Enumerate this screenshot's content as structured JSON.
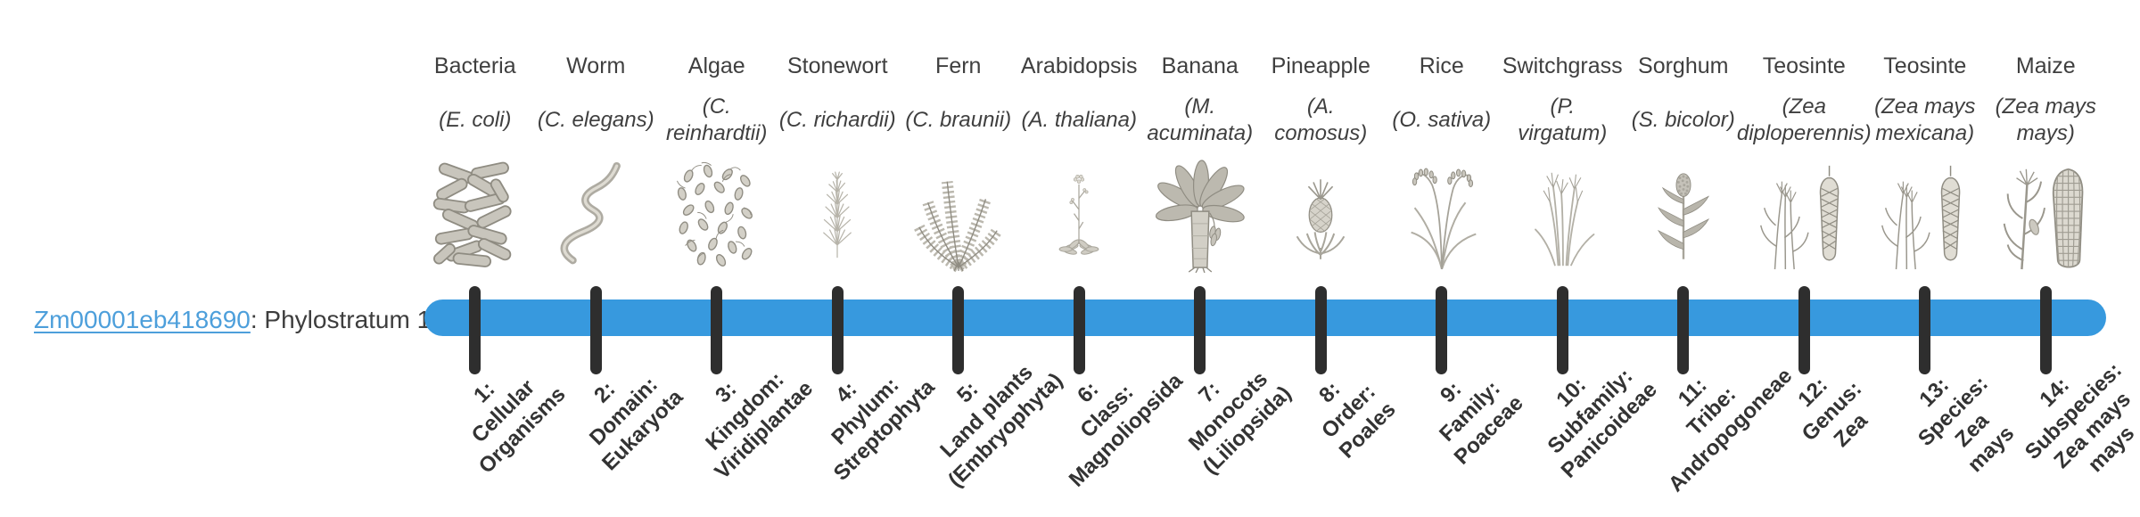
{
  "gene": {
    "id": "Zm00001eb418690",
    "suffix": ": Phylostratum 1"
  },
  "colors": {
    "bar": "#3799de",
    "tick": "#2e2e2e",
    "link": "#4d9fdb"
  },
  "strata": [
    {
      "common": "Bacteria",
      "species": "(E. coli)",
      "rank": "1:\nCellular\nOrganisms",
      "icon": "bacteria"
    },
    {
      "common": "Worm",
      "species": "(C. elegans)",
      "rank": "2:\nDomain:\nEukaryota",
      "icon": "worm"
    },
    {
      "common": "Algae",
      "species": "(C.\nreinhardtii)",
      "rank": "3:\nKingdom:\nViridiplantae",
      "icon": "algae"
    },
    {
      "common": "Stonewort",
      "species": "(C. richardii)",
      "rank": "4:\nPhylum:\nStreptophyta",
      "icon": "stonewort"
    },
    {
      "common": "Fern",
      "species": "(C. braunii)",
      "rank": "5:\nLand plants\n(Embryophyta)",
      "icon": "fern"
    },
    {
      "common": "Arabidopsis",
      "species": "(A. thaliana)",
      "rank": "6:\nClass:\nMagnoliopsida",
      "icon": "arabidopsis"
    },
    {
      "common": "Banana",
      "species": "(M.\nacuminata)",
      "rank": "7:\nMonocots\n(Liliopsida)",
      "icon": "banana"
    },
    {
      "common": "Pineapple",
      "species": "(A.\ncomosus)",
      "rank": "8:\nOrder:\nPoales",
      "icon": "pineapple"
    },
    {
      "common": "Rice",
      "species": "(O. sativa)",
      "rank": "9:\nFamily:\nPoaceae",
      "icon": "rice"
    },
    {
      "common": "Switchgrass",
      "species": "(P.\nvirgatum)",
      "rank": "10:\nSubfamily:\nPanicoideae",
      "icon": "switchgrass"
    },
    {
      "common": "Sorghum",
      "species": "(S. bicolor)",
      "rank": "11:\nTribe:\nAndropogoneae",
      "icon": "sorghum"
    },
    {
      "common": "Teosinte",
      "species": "(Zea\ndiploperennis)",
      "rank": "12:\nGenus:\nZea",
      "icon": "teosinte"
    },
    {
      "common": "Teosinte",
      "species": "(Zea mays\nmexicana)",
      "rank": "13:\nSpecies:\nZea\nmays",
      "icon": "teosinte-mexicana"
    },
    {
      "common": "Maize",
      "species": "(Zea mays\nmays)",
      "rank": "14:\nSubspecies:\nZea mays\nmays",
      "icon": "maize"
    }
  ]
}
